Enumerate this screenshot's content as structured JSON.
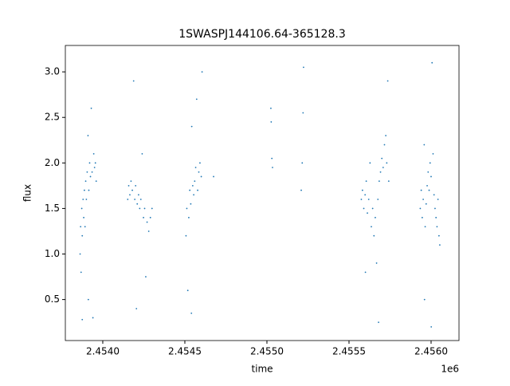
{
  "chart_data": {
    "type": "scatter",
    "title": "1SWASPJ144106.64-365128.3",
    "x_label": "time",
    "y_label": "flux",
    "x_offset_label": "1e6",
    "color": "#1f77b4",
    "xlim": [
      2453772,
      2456170
    ],
    "ylim": [
      0.05,
      3.29
    ],
    "xticks": [
      {
        "value": 2454000,
        "label": "2.4540"
      },
      {
        "value": 2454500,
        "label": "2.4545"
      },
      {
        "value": 2455000,
        "label": "2.4550"
      },
      {
        "value": 2455500,
        "label": "2.4555"
      },
      {
        "value": 2456000,
        "label": "2.4560"
      }
    ],
    "yticks": [
      0.5,
      {
        "value": 1,
        "label": "1.0"
      },
      1.5,
      {
        "value": 2,
        "label": "2.0"
      },
      2.5,
      {
        "value": 3,
        "label": "3.0"
      }
    ],
    "x": [
      2453862,
      2453865,
      2453868,
      2453872,
      2453875,
      2453880,
      2453884,
      2453888,
      2453892,
      2453896,
      2453900,
      2453905,
      2453910,
      2453915,
      2453920,
      2453925,
      2453930,
      2453935,
      2453940,
      2453945,
      2453950,
      2453955,
      2453960,
      2453875,
      2453912,
      2454152,
      2454158,
      2454165,
      2454172,
      2454180,
      2454188,
      2454195,
      2454200,
      2454210,
      2454218,
      2454225,
      2454232,
      2454240,
      2454248,
      2454255,
      2454262,
      2454270,
      2454280,
      2454290,
      2454300,
      2454205,
      2454507,
      2454512,
      2454518,
      2454524,
      2454530,
      2454536,
      2454542,
      2454548,
      2454554,
      2454560,
      2454566,
      2454572,
      2454578,
      2454585,
      2454592,
      2454600,
      2454605,
      2454540,
      2454675,
      2455024,
      2455026,
      2455030,
      2455034,
      2455209,
      2455215,
      2455220,
      2455223,
      2455575,
      2455582,
      2455590,
      2455598,
      2455605,
      2455612,
      2455620,
      2455628,
      2455636,
      2455644,
      2455652,
      2455660,
      2455668,
      2455676,
      2455684,
      2455692,
      2455700,
      2455708,
      2455716,
      2455724,
      2455730,
      2455736,
      2455742,
      2455600,
      2455680,
      2455934,
      2455940,
      2455946,
      2455952,
      2455958,
      2455964,
      2455970,
      2455976,
      2455982,
      2455988,
      2455994,
      2456000,
      2456006,
      2456012,
      2456018,
      2456024,
      2456030,
      2456036,
      2456042,
      2456048,
      2456053,
      2455960,
      2456001
    ],
    "y": [
      1.0,
      1.3,
      0.8,
      1.5,
      1.2,
      1.6,
      1.4,
      1.7,
      1.3,
      1.8,
      1.6,
      1.9,
      2.3,
      1.7,
      2.0,
      1.85,
      2.6,
      1.9,
      0.3,
      2.1,
      1.95,
      2.0,
      1.8,
      0.28,
      0.5,
      1.6,
      1.75,
      1.65,
      1.8,
      1.7,
      2.9,
      1.6,
      1.75,
      1.55,
      1.65,
      1.5,
      1.6,
      2.1,
      1.4,
      1.5,
      0.75,
      1.35,
      1.25,
      1.4,
      1.5,
      0.4,
      1.2,
      1.5,
      0.6,
      1.4,
      1.7,
      1.55,
      2.4,
      1.75,
      1.65,
      1.8,
      1.95,
      2.7,
      1.7,
      1.9,
      2.0,
      1.85,
      3.0,
      0.35,
      1.85,
      2.6,
      2.45,
      2.05,
      1.95,
      1.7,
      2.0,
      2.55,
      3.05,
      1.6,
      1.7,
      1.5,
      1.65,
      1.8,
      1.45,
      1.6,
      2.0,
      1.3,
      1.5,
      1.2,
      1.4,
      0.9,
      1.6,
      1.8,
      1.9,
      2.05,
      1.95,
      2.2,
      2.3,
      2.0,
      2.9,
      1.8,
      0.8,
      0.25,
      1.5,
      1.7,
      1.4,
      1.6,
      2.2,
      1.3,
      1.55,
      1.75,
      1.9,
      1.7,
      2.0,
      1.85,
      3.1,
      2.1,
      1.65,
      1.5,
      1.4,
      1.3,
      1.6,
      1.2,
      1.1,
      0.5,
      0.2
    ]
  }
}
